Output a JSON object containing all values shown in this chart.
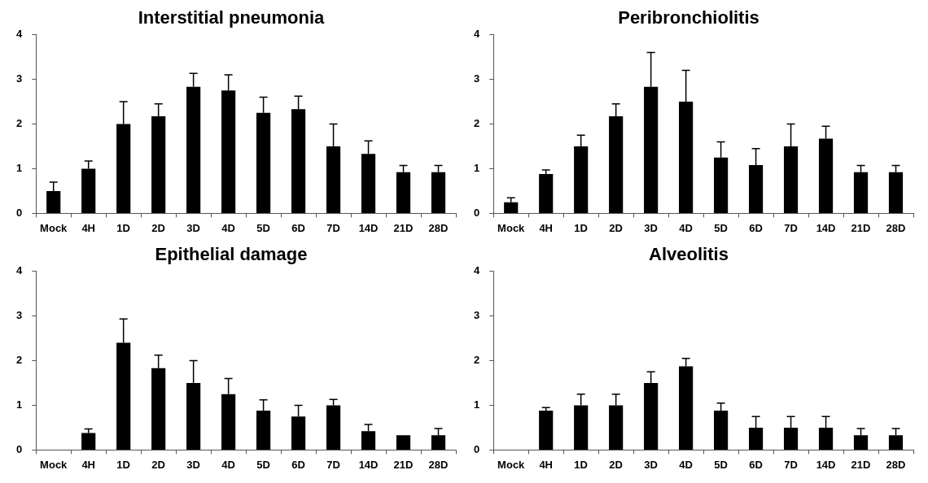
{
  "chart_data": [
    {
      "type": "bar",
      "title": "Interstitial pneumonia",
      "categories": [
        "Mock",
        "4H",
        "1D",
        "2D",
        "3D",
        "4D",
        "5D",
        "6D",
        "7D",
        "14D",
        "21D",
        "28D"
      ],
      "values": [
        0.5,
        1.0,
        2.0,
        2.17,
        2.83,
        2.75,
        2.25,
        2.33,
        1.5,
        1.33,
        0.92,
        0.92
      ],
      "errors": [
        [
          0.5,
          0.7
        ],
        [
          1.0,
          1.17
        ],
        [
          2.0,
          2.5
        ],
        [
          2.17,
          2.45
        ],
        [
          2.83,
          3.13
        ],
        [
          2.75,
          3.1
        ],
        [
          2.25,
          2.6
        ],
        [
          2.33,
          2.62
        ],
        [
          1.5,
          2.0
        ],
        [
          1.33,
          1.62
        ],
        [
          0.92,
          1.07
        ],
        [
          0.92,
          1.07
        ]
      ],
      "color": "#000000",
      "ylim": [
        0,
        4
      ],
      "yticks": [
        0,
        1,
        2,
        3,
        4
      ],
      "grid": false,
      "legend": false
    },
    {
      "type": "bar",
      "title": "Peribronchiolitis",
      "categories": [
        "Mock",
        "4H",
        "1D",
        "2D",
        "3D",
        "4D",
        "5D",
        "6D",
        "7D",
        "14D",
        "21D",
        "28D"
      ],
      "values": [
        0.25,
        0.88,
        1.5,
        2.17,
        2.83,
        2.5,
        1.25,
        1.08,
        1.5,
        1.67,
        0.92,
        0.92
      ],
      "errors": [
        [
          0.25,
          0.35
        ],
        [
          0.88,
          0.97
        ],
        [
          1.5,
          1.75
        ],
        [
          2.17,
          2.45
        ],
        [
          2.83,
          3.6
        ],
        [
          2.5,
          3.2
        ],
        [
          1.25,
          1.6
        ],
        [
          1.08,
          1.45
        ],
        [
          1.5,
          2.0
        ],
        [
          1.67,
          1.95
        ],
        [
          0.92,
          1.07
        ],
        [
          0.92,
          1.07
        ]
      ],
      "color": "#000000",
      "ylim": [
        0,
        4
      ],
      "yticks": [
        0,
        1,
        2,
        3,
        4
      ],
      "grid": false,
      "legend": false
    },
    {
      "type": "bar",
      "title": "Epithelial damage",
      "categories": [
        "Mock",
        "4H",
        "1D",
        "2D",
        "3D",
        "4D",
        "5D",
        "6D",
        "7D",
        "14D",
        "21D",
        "28D"
      ],
      "values": [
        0,
        0.38,
        2.4,
        1.83,
        1.5,
        1.25,
        0.88,
        0.75,
        1.0,
        0.42,
        0.33,
        0.33
      ],
      "errors": [
        null,
        [
          0.38,
          0.47
        ],
        [
          2.4,
          2.93
        ],
        [
          1.83,
          2.12
        ],
        [
          1.5,
          2.0
        ],
        [
          1.25,
          1.6
        ],
        [
          0.88,
          1.12
        ],
        [
          0.75,
          1.0
        ],
        [
          1.0,
          1.13
        ],
        [
          0.42,
          0.57
        ],
        null,
        [
          0.33,
          0.48
        ]
      ],
      "color": "#000000",
      "ylim": [
        0,
        4
      ],
      "yticks": [
        0,
        1,
        2,
        3,
        4
      ],
      "grid": false,
      "legend": false
    },
    {
      "type": "bar",
      "title": "Alveolitis",
      "categories": [
        "Mock",
        "4H",
        "1D",
        "2D",
        "3D",
        "4D",
        "5D",
        "6D",
        "7D",
        "14D",
        "21D",
        "28D"
      ],
      "values": [
        0,
        0.88,
        1.0,
        1.0,
        1.5,
        1.87,
        0.88,
        0.5,
        0.5,
        0.5,
        0.33,
        0.33
      ],
      "errors": [
        null,
        [
          0.88,
          0.95
        ],
        [
          1.0,
          1.25
        ],
        [
          1.0,
          1.25
        ],
        [
          1.5,
          1.75
        ],
        [
          1.87,
          2.05
        ],
        [
          0.88,
          1.05
        ],
        [
          0.5,
          0.75
        ],
        [
          0.5,
          0.75
        ],
        [
          0.5,
          0.75
        ],
        [
          0.33,
          0.48
        ],
        [
          0.33,
          0.48
        ]
      ],
      "color": "#000000",
      "ylim": [
        0,
        4
      ],
      "yticks": [
        0,
        1,
        2,
        3,
        4
      ],
      "grid": false,
      "legend": false
    }
  ]
}
